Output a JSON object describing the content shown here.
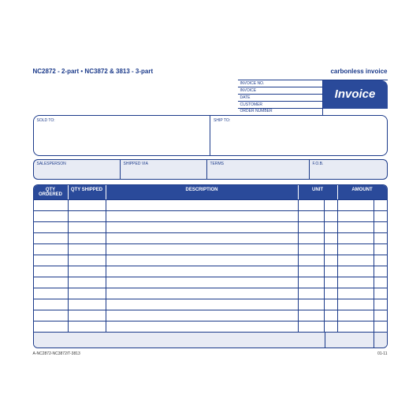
{
  "header": {
    "product_codes": "NC2872 - 2-part  •  NC3872 & 3813 - 3-part",
    "carbonless_label": "carbonless invoice"
  },
  "invoice_badge": "Invoice",
  "meta_labels": {
    "invoice_no": "INVOICE NO.",
    "invoice": "INVOICE",
    "date": "DATE",
    "customer": "CUSTOMER",
    "order_number": "ORDER NUMBER"
  },
  "address": {
    "sold_to": "SOLD TO:",
    "ship_to": "SHIP TO:"
  },
  "ship_row": {
    "salesperson": "SALESPERSON",
    "shipped_via": "SHIPPED VIA",
    "terms": "TERMS",
    "fob": "F.O.B."
  },
  "items_header": {
    "qty_ordered": "QTY ORDERED",
    "qty_shipped": "QTY SHIPPED",
    "description": "DESCRIPTION",
    "unit": "UNIT",
    "amount": "AMOUNT"
  },
  "items_rows": 12,
  "footer": {
    "left": "A-NC2872-NC3872/T-3813",
    "right": "01-11"
  },
  "colors": {
    "brand": "#1b3a8a",
    "brand_fill": "#2a4a9a",
    "tint": "#e8ebf4",
    "white": "#ffffff"
  },
  "ship_col_widths": [
    110,
    110,
    130,
    98
  ]
}
